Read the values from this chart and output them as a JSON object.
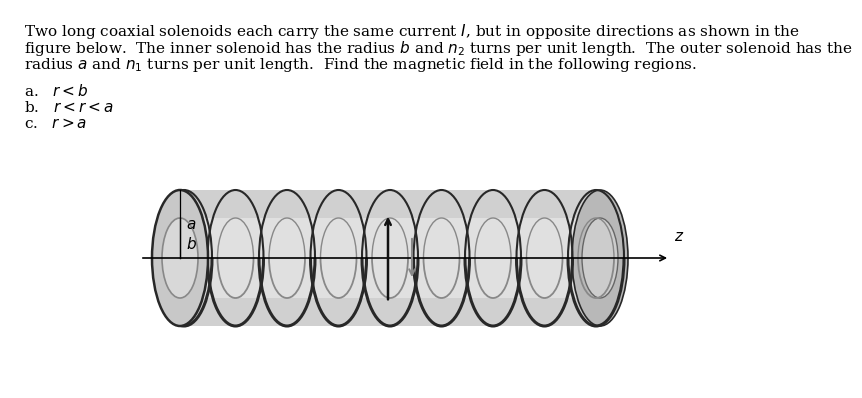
{
  "line1": "Two long coaxial solenoids each carry the same current $I$, but in opposite directions as shown in the",
  "line2": "figure below.  The inner solenoid has the radius $b$ and $n_2$ turns per unit length.  The outer solenoid has the",
  "line3": "radius $a$ and $n_1$ turns per unit length.  Find the magnetic field in the following regions.",
  "item_a": "a.   $r<b$",
  "item_b": "b.   $r<r<a$",
  "item_c": "c.   $r>a$",
  "bg_color": "#ffffff",
  "text_color": "#000000",
  "label_a": "$a$",
  "label_b": "$b$",
  "label_z": "$z$",
  "n_outer_rings": 9,
  "outer_body_color": "#d0d0d0",
  "inner_body_color": "#e0e0e0",
  "outer_ring_color": "#282828",
  "inner_ring_color": "#888888",
  "endcap_outer_color": "#c8c8c8",
  "endcap_inner_color": "#d8d8d8",
  "arrow_up_color": "#111111",
  "arrow_down_color": "#888888"
}
